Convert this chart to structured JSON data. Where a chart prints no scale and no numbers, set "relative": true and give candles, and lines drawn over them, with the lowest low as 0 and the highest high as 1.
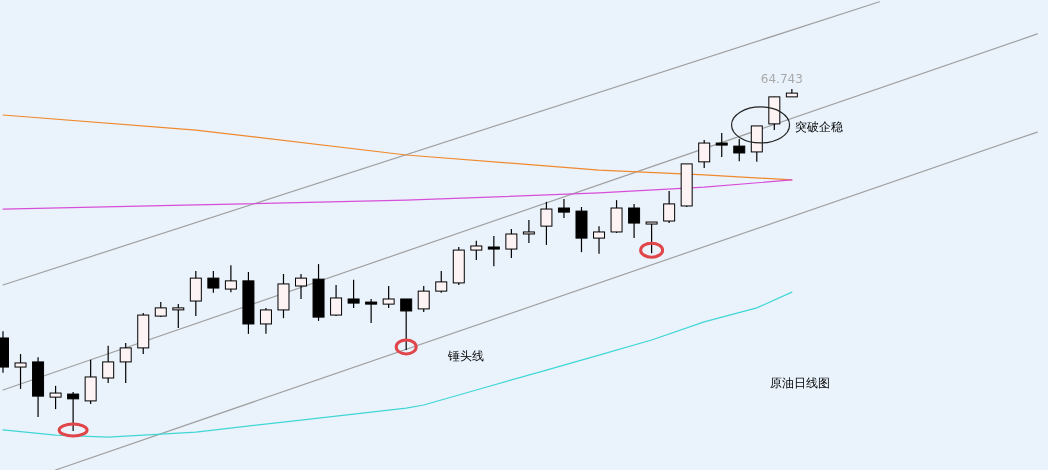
{
  "chart_data": {
    "type": "candlestick",
    "relative": true,
    "categories": [
      null,
      null,
      null,
      null,
      null,
      null,
      null,
      null,
      null,
      null,
      null,
      null,
      null,
      null,
      null,
      null,
      null,
      null,
      null,
      null,
      null,
      null,
      null,
      null,
      null,
      null,
      null,
      null,
      null,
      null,
      null,
      null,
      null,
      null,
      null,
      null,
      null,
      null,
      null,
      null,
      null,
      null,
      null,
      null,
      null,
      null,
      null,
      null,
      null,
      null,
      null,
      null,
      null,
      null,
      null,
      null,
      null,
      null,
      null,
      null
    ],
    "ohlc": [
      [
        0.272,
        0.292,
        0.17,
        0.187
      ],
      [
        0.187,
        0.225,
        0.123,
        0.199
      ],
      [
        0.202,
        0.216,
        0.041,
        0.102
      ],
      [
        0.099,
        0.132,
        0.064,
        0.111
      ],
      [
        0.108,
        0.114,
        0,
        0.094
      ],
      [
        0.088,
        0.208,
        0.079,
        0.158
      ],
      [
        0.155,
        0.249,
        0.14,
        0.202
      ],
      [
        0.202,
        0.257,
        0.14,
        0.243
      ],
      [
        0.243,
        0.345,
        0.225,
        0.339
      ],
      [
        0.336,
        0.377,
        0.333,
        0.36
      ],
      [
        0.357,
        0.371,
        0.301,
        0.36
      ],
      [
        0.38,
        0.468,
        0.336,
        0.447
      ],
      [
        0.447,
        0.468,
        0.404,
        0.418
      ],
      [
        0.415,
        0.485,
        0.406,
        0.439
      ],
      [
        0.439,
        0.465,
        0.284,
        0.313
      ],
      [
        0.313,
        0.36,
        0.284,
        0.354
      ],
      [
        0.354,
        0.459,
        0.33,
        0.43
      ],
      [
        0.424,
        0.459,
        0.386,
        0.447
      ],
      [
        0.444,
        0.488,
        0.322,
        0.333
      ],
      [
        0.339,
        0.427,
        0.336,
        0.389
      ],
      [
        0.386,
        0.442,
        0.36,
        0.374
      ],
      [
        0.377,
        0.386,
        0.316,
        0.371
      ],
      [
        0.371,
        0.424,
        0.36,
        0.386
      ],
      [
        0.386,
        0.386,
        0.237,
        0.351
      ],
      [
        0.357,
        0.424,
        0.348,
        0.409
      ],
      [
        0.409,
        0.468,
        0.404,
        0.436
      ],
      [
        0.433,
        0.538,
        0.427,
        0.529
      ],
      [
        0.529,
        0.556,
        0.5,
        0.541
      ],
      [
        0.538,
        0.57,
        0.482,
        0.532
      ],
      [
        0.532,
        0.591,
        0.506,
        0.576
      ],
      [
        0.579,
        0.617,
        0.55,
        0.582
      ],
      [
        0.599,
        0.67,
        0.544,
        0.649
      ],
      [
        0.652,
        0.678,
        0.623,
        0.64
      ],
      [
        0.643,
        0.655,
        0.523,
        0.564
      ],
      [
        0.564,
        0.599,
        0.518,
        0.582
      ],
      [
        0.582,
        0.675,
        0.579,
        0.652
      ],
      [
        0.652,
        0.664,
        0.564,
        0.608
      ],
      [
        0.608,
        0.611,
        0.52,
        0.611
      ],
      [
        0.614,
        0.702,
        0.608,
        0.664
      ],
      [
        0.658,
        0.781,
        0.655,
        0.781
      ],
      [
        0.787,
        0.851,
        0.769,
        0.842
      ],
      [
        0.842,
        0.871,
        0.801,
        0.836
      ],
      [
        0.833,
        0.854,
        0.789,
        0.813
      ],
      [
        0.816,
        0.892,
        0.787,
        0.892
      ],
      [
        0.898,
        0.977,
        0.88,
        0.977
      ],
      [
        0.977,
        1,
        0.977,
        0.988
      ],
      null,
      null,
      null,
      null,
      null,
      null,
      null,
      null,
      null,
      null,
      null,
      null,
      null,
      null
    ],
    "series": [
      {
        "type": "line",
        "color": "#a0a0a0",
        "values": [
          0.427,
          null,
          null,
          null,
          null,
          null,
          null,
          null,
          null,
          null,
          null,
          null,
          null,
          null,
          null,
          null,
          null,
          null,
          null,
          null,
          null,
          null,
          null,
          null,
          null,
          null,
          null,
          null,
          null,
          null,
          null,
          null,
          null,
          null,
          null,
          null,
          null,
          null,
          null,
          null,
          null,
          null,
          null,
          null,
          null,
          null,
          null,
          null,
          null,
          null,
          1.255,
          null,
          null,
          null,
          null,
          null,
          null,
          null,
          null,
          null
        ]
      },
      {
        "type": "line",
        "color": "#a0a0a0",
        "values": [
          0.12,
          null,
          null,
          null,
          null,
          null,
          null,
          null,
          null,
          null,
          null,
          null,
          null,
          null,
          null,
          null,
          null,
          null,
          null,
          null,
          null,
          null,
          null,
          null,
          null,
          null,
          null,
          null,
          null,
          null,
          null,
          null,
          null,
          null,
          null,
          null,
          null,
          null,
          null,
          null,
          null,
          null,
          null,
          null,
          null,
          null,
          null,
          null,
          null,
          null,
          null,
          null,
          null,
          null,
          null,
          null,
          null,
          null,
          null,
          1.161
        ]
      },
      {
        "type": "line",
        "color": "#a0a0a0",
        "values": [
          null,
          null,
          null,
          -0.114,
          null,
          null,
          null,
          null,
          null,
          null,
          null,
          null,
          null,
          null,
          null,
          null,
          null,
          null,
          null,
          null,
          null,
          null,
          null,
          null,
          null,
          null,
          null,
          null,
          null,
          null,
          null,
          null,
          null,
          null,
          null,
          null,
          null,
          null,
          null,
          null,
          null,
          null,
          null,
          null,
          null,
          null,
          null,
          null,
          null,
          null,
          null,
          null,
          null,
          null,
          null,
          null,
          null,
          null,
          null,
          0.874
        ]
      },
      {
        "type": "line",
        "color": "#f0892e",
        "values": [
          0.924,
          null,
          null,
          null,
          null,
          null,
          null,
          null,
          null,
          null,
          null,
          0.88,
          null,
          null,
          null,
          null,
          null,
          null,
          null,
          null,
          null,
          null,
          null,
          0.807,
          null,
          null,
          null,
          null,
          null,
          null,
          null,
          null,
          null,
          null,
          0.763,
          null,
          null,
          null,
          null,
          null,
          0.749,
          null,
          null,
          null,
          null,
          0.734,
          null,
          null,
          null,
          null,
          null,
          null,
          null,
          null,
          null,
          null,
          null,
          null,
          null,
          null
        ]
      },
      {
        "type": "line",
        "color": "#d74fd8",
        "values": [
          0.649,
          null,
          null,
          null,
          null,
          null,
          null,
          null,
          null,
          null,
          null,
          0.661,
          null,
          null,
          null,
          null,
          null,
          null,
          null,
          null,
          null,
          null,
          null,
          0.675,
          null,
          null,
          null,
          null,
          null,
          null,
          null,
          null,
          null,
          null,
          0.696,
          null,
          null,
          null,
          null,
          null,
          0.713,
          null,
          null,
          null,
          null,
          0.734,
          null,
          null,
          null,
          null,
          null,
          null,
          null,
          null,
          null,
          null,
          null,
          null,
          null,
          null
        ]
      },
      {
        "type": "line",
        "color": "#40d6d6",
        "values": [
          0.003,
          null,
          null,
          -0.012,
          null,
          null,
          -0.018,
          null,
          null,
          null,
          null,
          -0.003,
          null,
          null,
          null,
          null,
          null,
          0.032,
          null,
          null,
          null,
          null,
          null,
          0.067,
          0.076,
          null,
          null,
          0.12,
          null,
          null,
          null,
          0.178,
          null,
          null,
          0.222,
          null,
          null,
          0.266,
          null,
          null,
          0.319,
          null,
          null,
          0.36,
          null,
          0.406,
          null,
          null,
          null,
          null,
          null,
          null,
          null,
          null,
          null,
          null,
          null,
          null,
          null,
          null
        ]
      }
    ],
    "annotations": [
      "64.743",
      "突破企稳",
      "锤头线",
      "原油日线图"
    ]
  }
}
